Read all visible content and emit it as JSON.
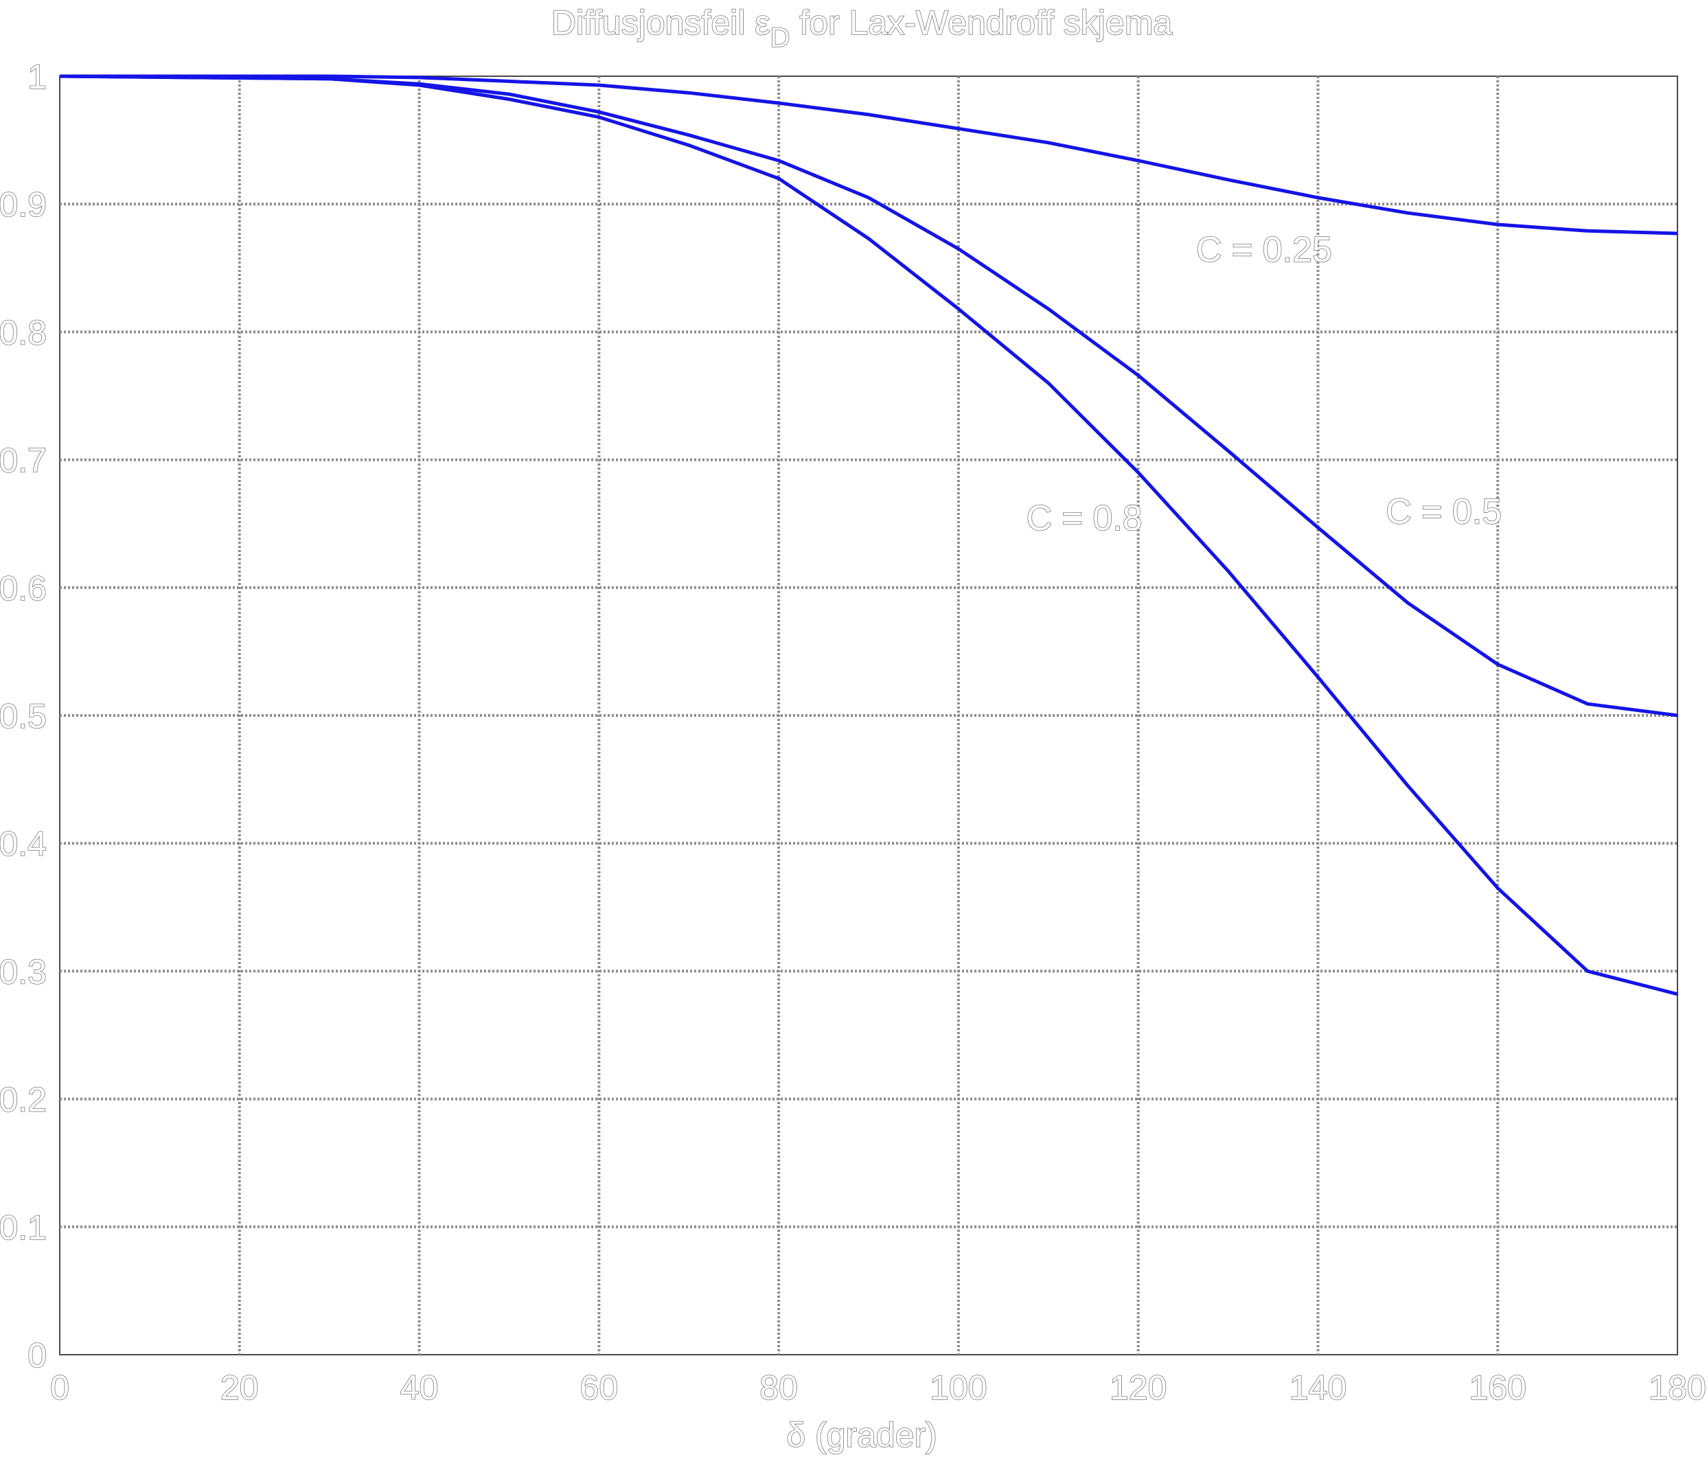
{
  "chart_data": {
    "type": "line",
    "title_main": "Diffusjonsfeil ",
    "title_symbol": "ε",
    "title_subscript": "D",
    "title_rest": " for Lax-Wendroff skjema",
    "xlabel": "δ (grader)",
    "ylabel": "",
    "xlim": [
      0,
      180
    ],
    "ylim": [
      0,
      1
    ],
    "grid": true,
    "x_ticks": [
      0,
      20,
      40,
      60,
      80,
      100,
      120,
      140,
      160,
      180
    ],
    "x_tick_labels": [
      "0",
      "20",
      "40",
      "60",
      "80",
      "100",
      "120",
      "140",
      "160",
      "180"
    ],
    "y_ticks": [
      0,
      0.1,
      0.2,
      0.3,
      0.4,
      0.5,
      0.6,
      0.7,
      0.8,
      0.9,
      1
    ],
    "y_tick_labels": [
      "0",
      "0.1",
      "0.2",
      "0.3",
      "0.4",
      "0.5",
      "0.6",
      "0.7",
      "0.8",
      "0.9",
      "1"
    ],
    "series": [
      {
        "label_value": "C = 0.25",
        "label_at": [
          134,
          0.855
        ],
        "color": "#1414e6",
        "x": [
          0,
          30,
          40,
          50,
          60,
          70,
          80,
          90,
          100,
          110,
          120,
          130,
          140,
          150,
          160,
          170,
          180
        ],
        "y": [
          1.0,
          1.0,
          0.999,
          0.996,
          0.993,
          0.987,
          0.979,
          0.97,
          0.959,
          0.948,
          0.934,
          0.919,
          0.905,
          0.893,
          0.884,
          0.879,
          0.877
        ]
      },
      {
        "label_value": "C = 0.5",
        "label_at": [
          154,
          0.65
        ],
        "color": "#1414e6",
        "x": [
          0,
          30,
          40,
          50,
          60,
          70,
          80,
          90,
          100,
          110,
          120,
          130,
          140,
          150,
          160,
          170,
          180
        ],
        "y": [
          1.0,
          0.998,
          0.994,
          0.986,
          0.972,
          0.954,
          0.934,
          0.905,
          0.865,
          0.818,
          0.766,
          0.707,
          0.647,
          0.588,
          0.54,
          0.509,
          0.5
        ]
      },
      {
        "label_value": "C = 0.8",
        "label_at": [
          114,
          0.645
        ],
        "color": "#1414e6",
        "x": [
          0,
          30,
          40,
          50,
          60,
          70,
          80,
          90,
          100,
          110,
          120,
          130,
          140,
          150,
          160,
          170,
          180
        ],
        "y": [
          1.0,
          0.998,
          0.993,
          0.982,
          0.968,
          0.946,
          0.92,
          0.873,
          0.818,
          0.76,
          0.69,
          0.613,
          0.53,
          0.445,
          0.365,
          0.3,
          0.282
        ]
      }
    ]
  }
}
